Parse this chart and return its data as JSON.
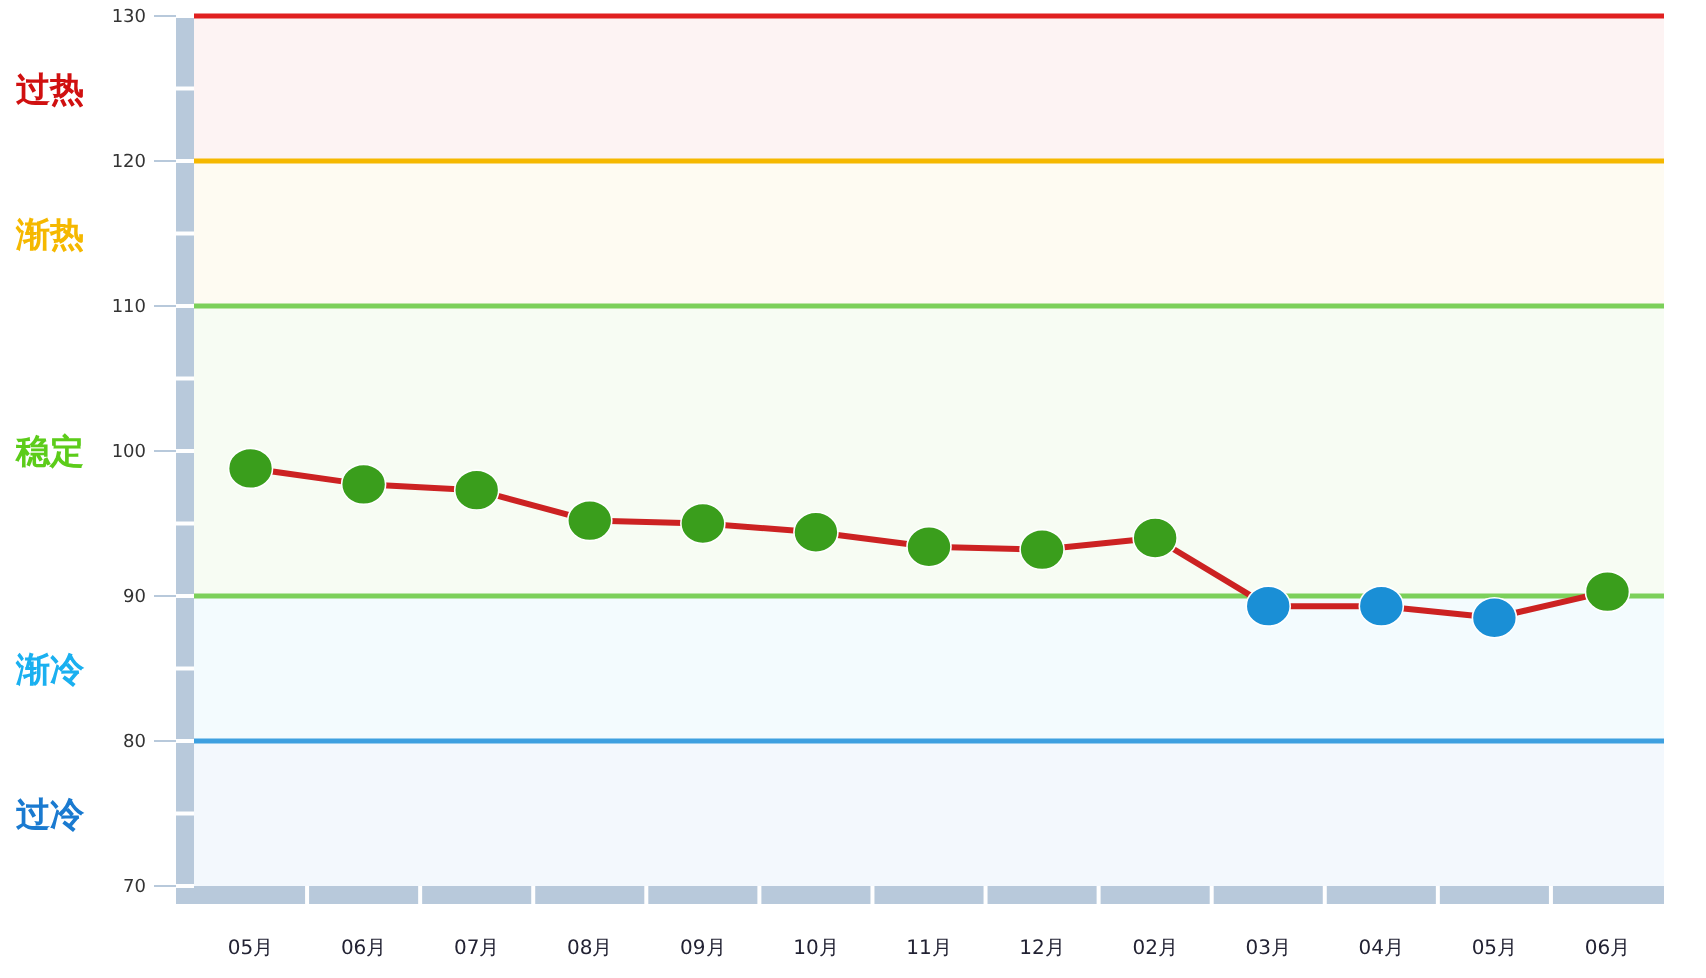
{
  "chart_data": {
    "type": "line",
    "categories": [
      "05月",
      "06月",
      "07月",
      "08月",
      "09月",
      "10月",
      "11月",
      "12月",
      "02月",
      "03月",
      "04月",
      "05月",
      "06月"
    ],
    "series": [
      {
        "color": "#cc2222",
        "colors": [
          "#3a9e1c",
          "#3a9e1c",
          "#3a9e1c",
          "#3a9e1c",
          "#3a9e1c",
          "#3a9e1c",
          "#3a9e1c",
          "#3a9e1c",
          "#3a9e1c",
          "#1a8fd6",
          "#1a8fd6",
          "#1a8fd6",
          "#3a9e1c"
        ],
        "values": [
          98.8,
          97.7,
          97.3,
          95.2,
          95.0,
          94.4,
          93.4,
          93.2,
          94.0,
          89.3,
          89.3,
          88.5,
          90.3
        ]
      }
    ],
    "ylim": [
      70,
      130
    ],
    "yticks": [
      70,
      80,
      90,
      100,
      110,
      120,
      130
    ],
    "ref_lines": [
      {
        "axis": "y",
        "value": 130,
        "color": "#e02020"
      },
      {
        "axis": "y",
        "value": 120,
        "color": "#f5b800"
      },
      {
        "axis": "y",
        "value": 110,
        "color": "#7cd05a"
      },
      {
        "axis": "y",
        "value": 90,
        "color": "#7cd05a"
      },
      {
        "axis": "y",
        "value": 80,
        "color": "#3ea0e0"
      }
    ],
    "bands": [
      {
        "axis": "y",
        "from": 120,
        "to": 130,
        "label": "过热",
        "color": "#d01010"
      },
      {
        "axis": "y",
        "from": 110,
        "to": 120,
        "label": "渐热",
        "color": "#f5b800"
      },
      {
        "axis": "y",
        "from": 90,
        "to": 110,
        "label": "稳定",
        "color": "#5ccc1a"
      },
      {
        "axis": "y",
        "from": 80,
        "to": 90,
        "label": "渐冷",
        "color": "#1ab0f0"
      },
      {
        "axis": "y",
        "from": 70,
        "to": 80,
        "label": "过冷",
        "color": "#1a7ad0"
      }
    ],
    "marker": "circle",
    "grid": false
  }
}
